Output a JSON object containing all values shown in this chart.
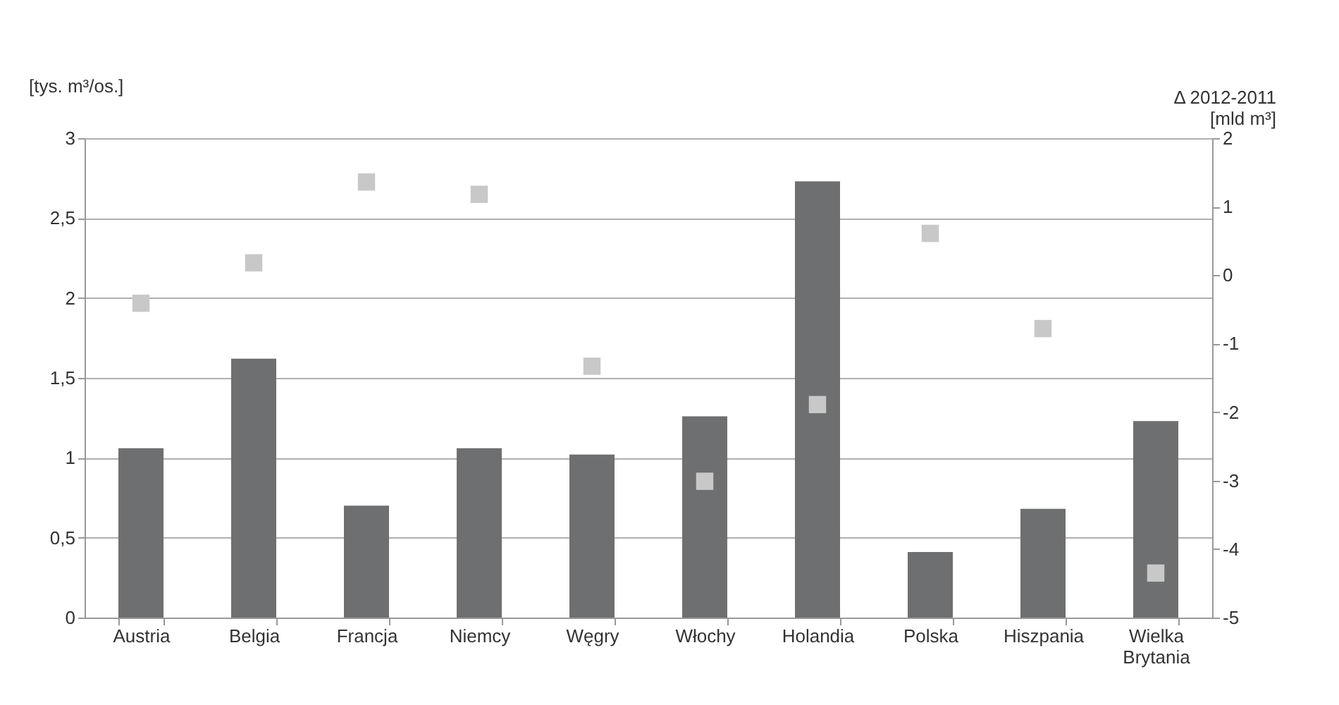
{
  "chart_data": {
    "type": "bar",
    "ylabel": "[tys. m³/os.]",
    "y2label": "Δ 2012-2011\n[mld m³]",
    "categories": [
      "Austria",
      "Belgia",
      "Francja",
      "Niemcy",
      "Węgry",
      "Włochy",
      "Holandia",
      "Polska",
      "Hiszpania",
      "Wielka Brytania"
    ],
    "series": [
      {
        "type": "bar",
        "color": "#6d6f70",
        "values": [
          1.06,
          1.62,
          0.7,
          1.06,
          1.02,
          1.26,
          2.73,
          0.41,
          0.68,
          1.23
        ]
      },
      {
        "type": "scatter",
        "axis": "y2",
        "marker": "square",
        "color": "#c8c8c8",
        "values": [
          -0.41,
          0.18,
          1.36,
          1.18,
          -1.33,
          -3.01,
          -1.89,
          0.61,
          -0.78,
          -4.35
        ]
      }
    ],
    "ylim": [
      0,
      3
    ],
    "yticks": [
      0,
      {
        "value": 0.5,
        "label": "0,5"
      },
      1,
      {
        "value": 1.5,
        "label": "1,5"
      },
      2,
      {
        "value": 2.5,
        "label": "2,5"
      },
      3
    ],
    "y2lim": [
      -5,
      2
    ],
    "y2ticks": [
      -5,
      -4,
      -3,
      -2,
      -1,
      0,
      1,
      2
    ],
    "grid": "y"
  }
}
